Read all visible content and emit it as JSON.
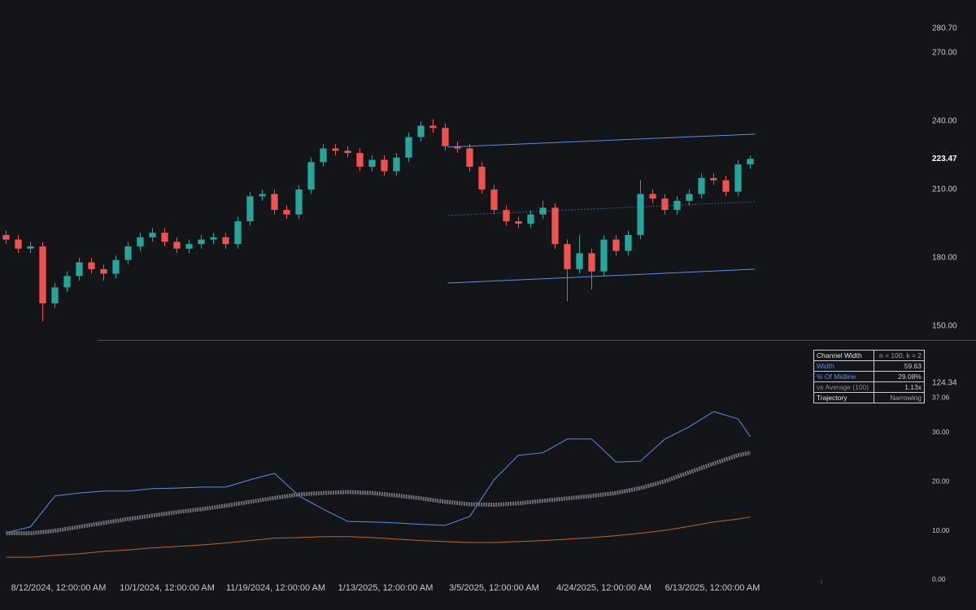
{
  "chart_data": [
    {
      "type": "candlestick",
      "open": [
        190,
        188,
        184,
        185,
        160,
        167,
        172,
        178,
        175,
        173,
        179,
        185,
        189,
        191,
        187,
        184,
        186,
        188,
        189,
        186,
        196,
        207,
        208,
        201,
        199,
        210,
        222,
        228,
        227,
        226,
        220,
        223,
        218,
        224,
        233,
        238,
        237,
        229,
        228,
        220,
        210,
        201,
        196,
        195,
        199,
        202,
        186,
        175,
        182,
        174,
        188,
        183,
        190,
        208,
        206,
        201,
        205,
        208,
        215,
        214,
        209,
        221
      ],
      "high": [
        192,
        190,
        187,
        187,
        169,
        174,
        180,
        180,
        177,
        181,
        187,
        191,
        193,
        193,
        189,
        188,
        190,
        191,
        191,
        198,
        209,
        210,
        210,
        203,
        212,
        224,
        230,
        230,
        229,
        228,
        225,
        225,
        226,
        235,
        240,
        241,
        239,
        231,
        230,
        222,
        212,
        203,
        198,
        201,
        205,
        204,
        188,
        190,
        184,
        190,
        190,
        192,
        214,
        210,
        208,
        207,
        210,
        217,
        217,
        216,
        223,
        225
      ],
      "low": [
        186,
        182,
        182,
        152,
        158,
        165,
        170,
        173,
        170,
        171,
        177,
        183,
        187,
        185,
        182,
        182,
        184,
        186,
        184,
        184,
        194,
        205,
        199,
        197,
        197,
        208,
        220,
        225,
        224,
        218,
        218,
        216,
        216,
        222,
        231,
        235,
        227,
        226,
        218,
        208,
        199,
        194,
        193,
        193,
        197,
        184,
        161,
        173,
        166,
        172,
        181,
        181,
        188,
        204,
        199,
        199,
        203,
        206,
        212,
        207,
        207,
        219
      ],
      "close": [
        188,
        184,
        185,
        160,
        167,
        172,
        178,
        175,
        173,
        179,
        185,
        189,
        191,
        187,
        184,
        186,
        188,
        189,
        186,
        196,
        207,
        208,
        201,
        199,
        210,
        222,
        228,
        227,
        226,
        220,
        223,
        218,
        224,
        233,
        238,
        237,
        229,
        228,
        220,
        210,
        201,
        196,
        195,
        199,
        202,
        186,
        175,
        182,
        174,
        188,
        183,
        190,
        208,
        206,
        201,
        205,
        208,
        215,
        214,
        209,
        221,
        223.47
      ],
      "up_color": "#26a69a",
      "down_color": "#ef5350",
      "xlim": [
        -0.5,
        75.5
      ],
      "ylim": [
        143.9,
        293.2
      ],
      "yticks": [
        {
          "value": 150,
          "label": "150.00"
        },
        {
          "value": 180,
          "label": "180.00"
        },
        {
          "value": 210,
          "label": "210.00"
        },
        {
          "value": 240,
          "label": "240.00"
        },
        {
          "value": 270,
          "label": "270.00"
        },
        {
          "value": 280.7,
          "label": "280.70"
        }
      ],
      "channel": {
        "color": "#5b8def",
        "x": [
          36.2,
          61.4
        ],
        "upper": [
          228.6,
          234.3
        ],
        "middle": [
          198.6,
          204.6
        ],
        "lower": [
          168.9,
          175
        ]
      }
    },
    {
      "type": "line",
      "x": [
        0,
        2,
        4,
        6,
        8,
        10,
        12,
        14,
        16,
        18,
        20,
        22,
        24,
        26,
        28,
        30,
        32,
        34,
        36,
        38,
        40,
        42,
        44,
        46,
        48,
        50,
        52,
        54,
        56,
        58,
        60,
        61
      ],
      "series": [
        {
          "color": "#5b8def",
          "line_width": 1,
          "values": [
            9.6,
            10.8,
            17.1,
            17.7,
            18.1,
            18.1,
            18.6,
            18.7,
            18.9,
            18.9,
            20.4,
            21.7,
            17.1,
            14.4,
            11.9,
            11.8,
            11.6,
            11.3,
            11.1,
            12.9,
            20.4,
            25.4,
            25.9,
            28.7,
            28.7,
            24.0,
            24.2,
            28.7,
            31.2,
            34.3,
            32.8,
            29.2
          ]
        },
        {
          "color": "#6e7079",
          "line_width": 5,
          "values": [
            9.5,
            9.5,
            10.0,
            10.8,
            11.6,
            12.4,
            13.1,
            13.8,
            14.4,
            15.1,
            15.9,
            16.7,
            17.4,
            17.7,
            17.9,
            17.7,
            17.2,
            16.6,
            15.9,
            15.4,
            15.3,
            15.6,
            16.1,
            16.6,
            17.1,
            17.7,
            18.7,
            20.1,
            21.9,
            23.7,
            25.4,
            25.9
          ]
        },
        {
          "color": "#c0651d",
          "line_width": 1,
          "values": [
            4.6,
            4.6,
            5.0,
            5.3,
            5.8,
            6.1,
            6.5,
            6.8,
            7.1,
            7.5,
            8.0,
            8.5,
            8.6,
            8.8,
            8.8,
            8.6,
            8.3,
            8.0,
            7.8,
            7.6,
            7.6,
            7.8,
            8.0,
            8.3,
            8.6,
            9.0,
            9.5,
            10.1,
            10.9,
            11.8,
            12.4,
            12.8
          ]
        }
      ],
      "xlim": [
        -0.5,
        75.5
      ],
      "ylim": [
        -4.5,
        48.9
      ],
      "yticks": [
        {
          "value": 0,
          "label": "0.00"
        },
        {
          "value": 10,
          "label": "10.00"
        },
        {
          "value": 20,
          "label": "20.00"
        },
        {
          "value": 30,
          "label": "30.00"
        },
        37.06
      ],
      "xticks": [
        {
          "value": 4.3,
          "label": "8/12/2024, 12:00:00 AM"
        },
        {
          "value": 13.2,
          "label": "10/1/2024, 12:00:00 AM"
        },
        {
          "value": 22.1,
          "label": "11/19/2024, 12:00:00 AM"
        },
        {
          "value": 31.1,
          "label": "1/13/2025, 12:00:00 AM"
        },
        {
          "value": 40,
          "label": "3/5/2025, 12:00:00 AM"
        },
        {
          "value": 49,
          "label": "4/24/2025, 12:00:00 AM"
        },
        {
          "value": 57.9,
          "label": "6/13/2025, 12:00:00 AM"
        }
      ],
      "annotations": [
        "124.34"
      ]
    }
  ],
  "table": {
    "rows": [
      [
        "Channel Width",
        "n = 100, k = 2"
      ],
      [
        "Width",
        "59.63"
      ],
      [
        "% Of Midline",
        "29.08%"
      ],
      [
        "vs Average (100)",
        "1.13x"
      ],
      [
        "Trajectory",
        "Narrowing"
      ]
    ]
  }
}
